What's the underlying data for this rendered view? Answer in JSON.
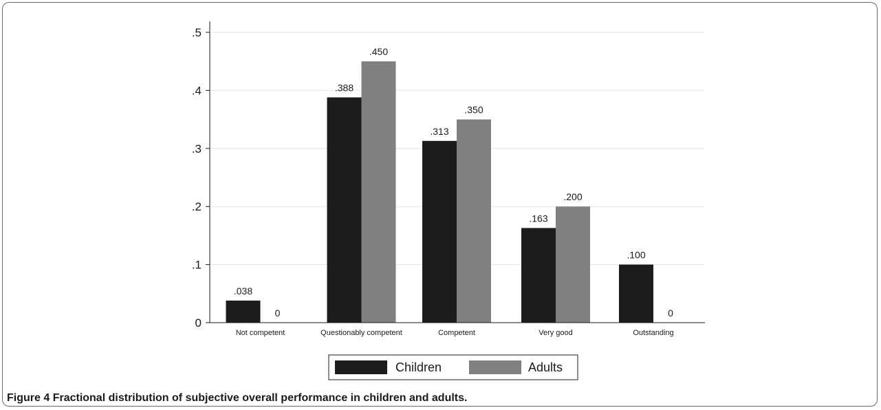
{
  "colors": {
    "children": "#1c1c1c",
    "adults": "#808080",
    "grid": "#e4e4e4",
    "axis": "#1a1a1a",
    "frame": "#6b6b6b"
  },
  "chart_data": {
    "type": "bar",
    "categories": [
      "Not competent",
      "Questionably competent",
      "Competent",
      "Very good",
      "Outstanding"
    ],
    "series": [
      {
        "name": "Children",
        "values": [
          0.038,
          0.388,
          0.313,
          0.163,
          0.1
        ],
        "labels": [
          ".038",
          ".388",
          ".313",
          ".163",
          ".100"
        ]
      },
      {
        "name": "Adults",
        "values": [
          0,
          0.45,
          0.35,
          0.2,
          0
        ],
        "labels": [
          "0",
          ".450",
          ".350",
          ".200",
          "0"
        ]
      }
    ],
    "yticks": [
      0,
      0.1,
      0.2,
      0.3,
      0.4,
      0.5
    ],
    "ytick_labels": [
      "0",
      ".1",
      ".2",
      ".3",
      ".4",
      ".5"
    ],
    "ylim": [
      0,
      0.5
    ],
    "grid": true,
    "legend_position": "bottom"
  },
  "caption": {
    "label": "Figure 4",
    "text": "Fractional distribution of subjective overall performance in children and adults."
  }
}
